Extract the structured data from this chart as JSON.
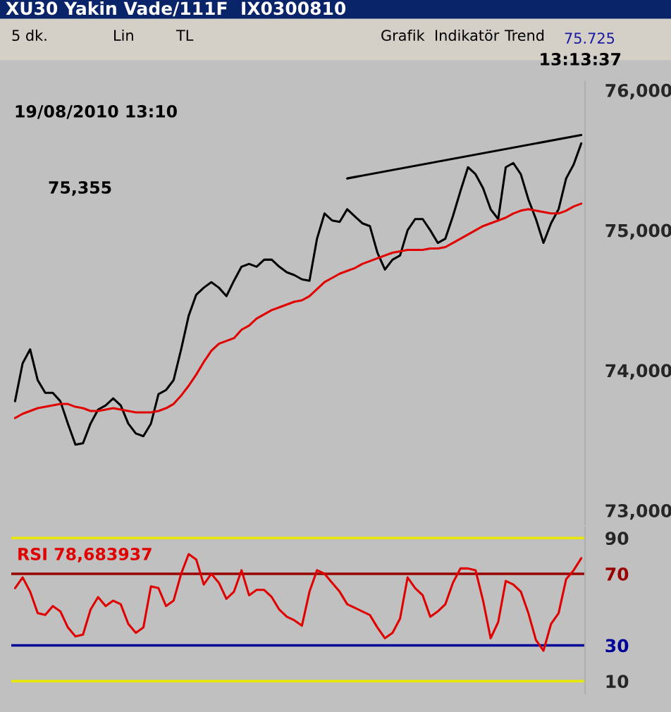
{
  "chart_data": [
    {
      "type": "line",
      "title": "XU30 Yakin Vade/111F  IX0300810",
      "annotations": [
        "5 dk.",
        "Lin",
        "TL",
        "Grafik",
        "Indikatör",
        "Trend",
        "75.725",
        "13:13:37",
        "19/08/2010 13:10",
        "75,355"
      ],
      "categories": [
        null,
        null,
        null,
        null,
        null,
        null,
        null,
        null,
        null,
        null,
        null,
        null,
        null,
        null,
        null,
        null,
        null,
        null,
        null,
        null,
        null,
        null,
        null,
        null,
        null,
        null,
        null,
        null,
        null,
        null,
        null,
        null,
        null,
        null,
        null,
        null,
        null,
        null,
        null,
        null,
        null,
        null,
        null,
        null,
        null,
        null,
        null,
        null,
        null,
        null,
        null,
        null,
        null,
        null,
        null,
        null,
        null,
        null,
        null,
        null,
        null,
        null,
        null,
        null,
        null,
        null,
        null,
        null,
        null,
        null,
        null,
        null,
        null,
        null,
        null,
        null
      ],
      "series": [
        {
          "color": "#000000",
          "values": [
            73780,
            74050,
            74150,
            73930,
            73840,
            73840,
            73780,
            73620,
            73470,
            73480,
            73620,
            73720,
            73750,
            73800,
            73750,
            73620,
            73550,
            73530,
            73620,
            73830,
            73860,
            73930,
            74150,
            74390,
            74540,
            74590,
            74630,
            74590,
            74530,
            74640,
            74740,
            74760,
            74740,
            74790,
            74790,
            74740,
            74700,
            74680,
            74650,
            74640,
            74940,
            75120,
            75070,
            75060,
            75150,
            75100,
            75050,
            75030,
            74840,
            74720,
            74790,
            74820,
            75000,
            75080,
            75080,
            75000,
            74910,
            74940,
            75100,
            75280,
            75450,
            75400,
            75300,
            75150,
            75080,
            75450,
            75480,
            75400,
            75220,
            75080,
            74910,
            75050,
            75150,
            75370,
            75470,
            75620
          ]
        },
        {
          "color": "#e00000",
          "values": [
            73660,
            73690,
            73710,
            73730,
            73740,
            73750,
            73760,
            73760,
            73740,
            73730,
            73710,
            73710,
            73720,
            73730,
            73720,
            73710,
            73700,
            73700,
            73700,
            73710,
            73730,
            73760,
            73820,
            73890,
            73970,
            74060,
            74140,
            74190,
            74210,
            74230,
            74290,
            74320,
            74370,
            74400,
            74430,
            74450,
            74470,
            74490,
            74500,
            74530,
            74580,
            74630,
            74660,
            74690,
            74710,
            74730,
            74760,
            74780,
            74800,
            74820,
            74840,
            74850,
            74860,
            74860,
            74860,
            74870,
            74870,
            74880,
            74910,
            74940,
            74970,
            75000,
            75030,
            75050,
            75070,
            75090,
            75120,
            75140,
            75150,
            75140,
            75130,
            75120,
            75120,
            75140,
            75170,
            75190
          ]
        },
        {
          "color": "#000000",
          "values": [
            null,
            null,
            null,
            null,
            null,
            null,
            null,
            null,
            null,
            null,
            null,
            null,
            null,
            null,
            null,
            null,
            null,
            null,
            null,
            null,
            null,
            null,
            null,
            null,
            null,
            null,
            null,
            null,
            null,
            null,
            null,
            null,
            null,
            null,
            null,
            null,
            null,
            null,
            null,
            null,
            null,
            null,
            null,
            null,
            75370,
            null,
            null,
            null,
            null,
            null,
            null,
            null,
            null,
            null,
            null,
            null,
            null,
            null,
            null,
            null,
            null,
            null,
            null,
            null,
            null,
            null,
            null,
            null,
            null,
            null,
            null,
            null,
            null,
            null,
            null,
            75680
          ]
        }
      ],
      "ylim": [
        72900,
        76060
      ],
      "yticks": [
        {
          "value": 73000,
          "label": "73,000"
        },
        {
          "value": 74000,
          "label": "74,000"
        },
        {
          "value": 75000,
          "label": "75,000"
        },
        {
          "value": 76000,
          "label": "76,000"
        }
      ],
      "tick_labels": "y"
    },
    {
      "type": "line",
      "annotations": [
        "RSI 78,683937"
      ],
      "categories": [
        null,
        null,
        null,
        null,
        null,
        null,
        null,
        null,
        null,
        null,
        null,
        null,
        null,
        null,
        null,
        null,
        null,
        null,
        null,
        null,
        null,
        null,
        null,
        null,
        null,
        null,
        null,
        null,
        null,
        null,
        null,
        null,
        null,
        null,
        null,
        null,
        null,
        null,
        null,
        null,
        null,
        null,
        null,
        null,
        null,
        null,
        null,
        null,
        null,
        null,
        null,
        null,
        null,
        null,
        null,
        null,
        null,
        null,
        null,
        null,
        null,
        null,
        null,
        null,
        null,
        null,
        null,
        null,
        null,
        null,
        null,
        null,
        null,
        null,
        null,
        null
      ],
      "series": [
        {
          "color": "#e00000",
          "values": [
            62,
            68,
            60,
            48,
            47,
            52,
            49,
            40,
            35,
            36,
            50,
            57,
            52,
            55,
            53,
            42,
            37,
            40,
            63,
            62,
            52,
            55,
            70,
            81,
            78,
            64,
            70,
            65,
            56,
            60,
            72,
            58,
            61,
            61,
            57,
            50,
            46,
            44,
            41,
            60,
            72,
            70,
            65,
            60,
            53,
            51,
            49,
            47,
            40,
            34,
            37,
            45,
            68,
            62,
            58,
            46,
            49,
            53,
            65,
            73,
            73,
            72,
            55,
            34,
            43,
            66,
            64,
            60,
            48,
            33,
            27,
            42,
            48,
            67,
            72,
            78.7
          ]
        }
      ],
      "ylim": [
        3,
        96
      ],
      "yticks": [
        10,
        30,
        70,
        90
      ],
      "ref_lines": [
        {
          "axis": "y",
          "value": 90,
          "color": "#e8e800"
        },
        {
          "axis": "y",
          "value": 70,
          "color": "#990000"
        },
        {
          "axis": "y",
          "value": 30,
          "color": "#000099"
        },
        {
          "axis": "y",
          "value": 10,
          "color": "#e8e800"
        }
      ],
      "tick_labels": "y"
    }
  ]
}
